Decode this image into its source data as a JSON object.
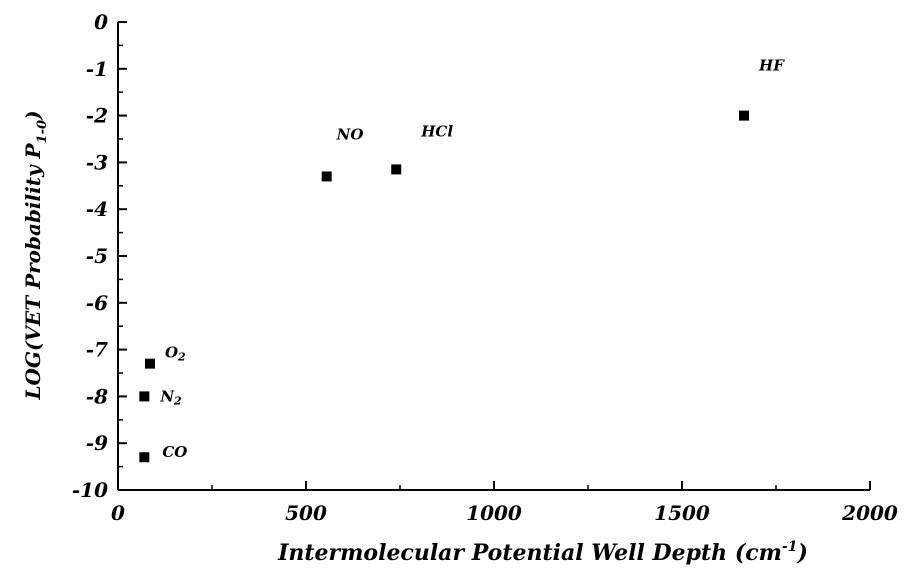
{
  "chart_data": {
    "type": "scatter",
    "title": "",
    "xlabel": "Intermolecular Potential Well Depth (cm",
    "xlabel_sup": "-1",
    "xlabel_close": ")",
    "ylabel": "LOG(VET Probability P",
    "ylabel_sub": "1-0",
    "ylabel_close": ")",
    "xlim": [
      0,
      2000
    ],
    "ylim": [
      -10,
      0
    ],
    "xticks": [
      0,
      500,
      1000,
      1500,
      2000
    ],
    "xtick_labels": [
      "0",
      "500",
      "1000",
      "1500",
      "2000"
    ],
    "yticks": [
      0,
      -1,
      -2,
      -3,
      -4,
      -5,
      -6,
      -7,
      -8,
      -9,
      -10
    ],
    "ytick_labels": [
      "0",
      "-1",
      "-2",
      "-3",
      "-4",
      "-5",
      "-6",
      "-7",
      "-8",
      "-9",
      "-10"
    ],
    "grid": false,
    "marker": "square",
    "points": [
      {
        "label": "NO",
        "label_sub": "",
        "x": 555,
        "y": -3.3
      },
      {
        "label": "HCl",
        "label_sub": "",
        "x": 740,
        "y": -3.15
      },
      {
        "label": "HF",
        "label_sub": "",
        "x": 1665,
        "y": -2.0
      },
      {
        "label": "O",
        "label_sub": "2",
        "x": 85,
        "y": -7.3
      },
      {
        "label": "N",
        "label_sub": "2",
        "x": 70,
        "y": -8.0
      },
      {
        "label": "CO",
        "label_sub": "",
        "x": 70,
        "y": -9.3
      }
    ]
  }
}
